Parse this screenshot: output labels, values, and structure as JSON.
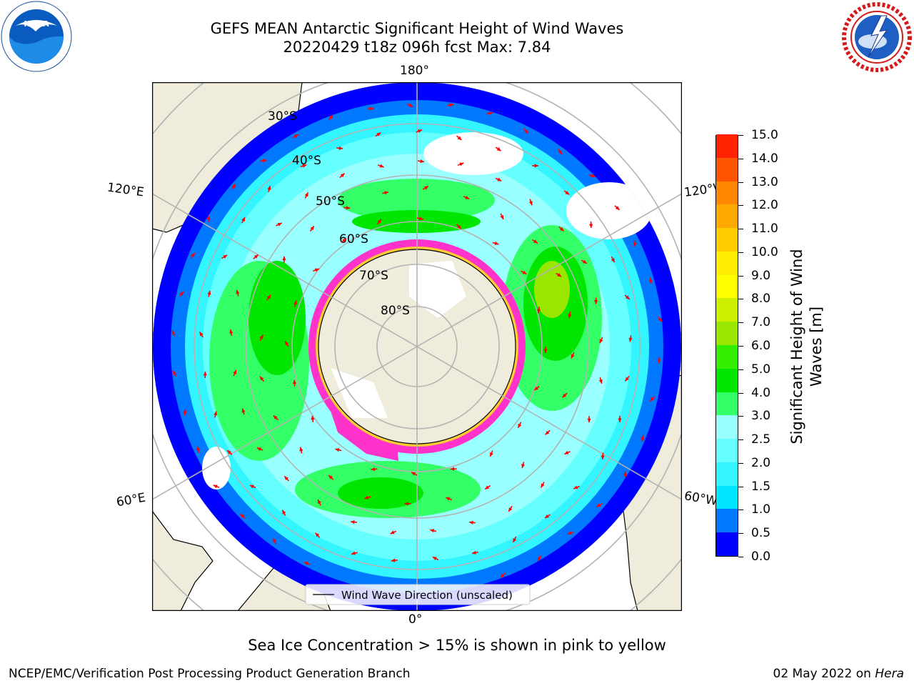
{
  "title": {
    "line1": "GEFS MEAN Antarctic Significant Height of Wind Waves",
    "line2": "20220429 t18z 096h fcst   Max: 7.84"
  },
  "logos": {
    "left": "noaa-logo",
    "right": "nws-logo",
    "left_text": "NOAA",
    "right_text": "NATIONAL WEATHER SERVICE"
  },
  "map": {
    "projection": "south-polar-stereographic",
    "longitude_labels": {
      "top": "180°",
      "bottom": "0°",
      "left_upper": "120°E",
      "left_lower": "60°E",
      "right_upper": "120°W",
      "right_lower": "60°W"
    },
    "latitude_labels": [
      "30°S",
      "40°S",
      "50°S",
      "60°S",
      "70°S",
      "80°S"
    ],
    "legend": "Wind Wave Direction (unscaled)",
    "arrow_color": "#ff0000",
    "land_color": "#efecdc",
    "ice_colors": [
      "#ff33cc",
      "#ffcc33"
    ]
  },
  "colorbar": {
    "label": "Significant Height of Wind Waves [m]",
    "ticks": [
      "0.0",
      "0.5",
      "1.0",
      "1.5",
      "2.0",
      "2.5",
      "3.0",
      "4.0",
      "5.0",
      "6.0",
      "7.0",
      "8.0",
      "9.0",
      "10.0",
      "11.0",
      "12.0",
      "13.0",
      "14.0",
      "15.0"
    ],
    "colors": [
      "#0000ff",
      "#0078ff",
      "#00e5ff",
      "#33f5ff",
      "#66ffff",
      "#99ffff",
      "#33ff66",
      "#00e600",
      "#33ee00",
      "#99e600",
      "#ccf000",
      "#ffff00",
      "#ffee00",
      "#ffcc00",
      "#ffaa00",
      "#ff8800",
      "#ff5500",
      "#ff2200",
      "#ff0000"
    ]
  },
  "footer": {
    "ice_note": "Sea Ice Concentration > 15% is shown in pink to yellow",
    "credit": "NCEP/EMC/Verification Post Processing Product Generation Branch",
    "date": "02 May 2022 on",
    "host": "Hera"
  }
}
